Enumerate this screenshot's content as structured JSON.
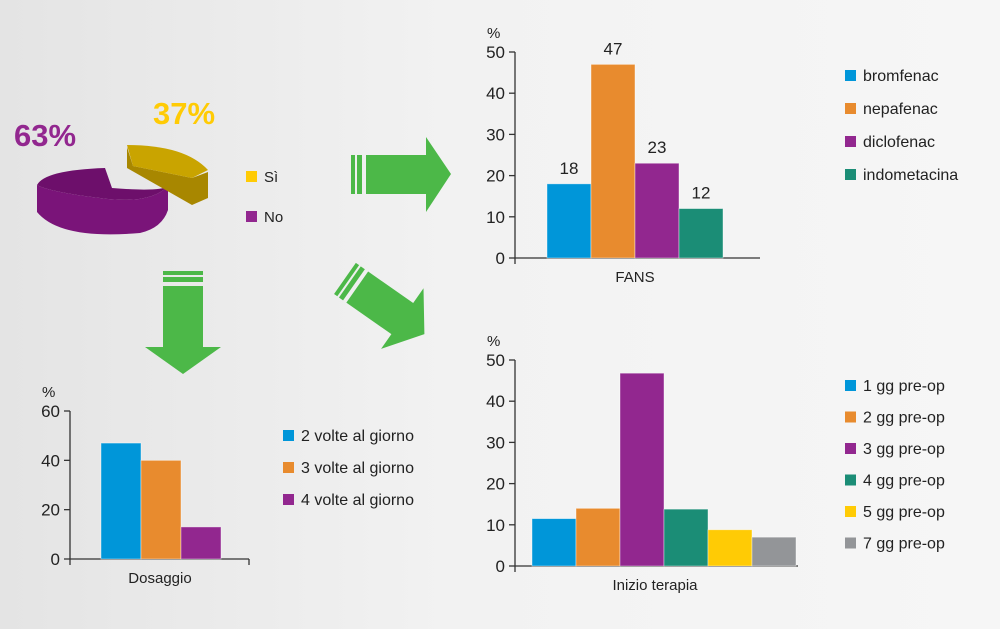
{
  "colors": {
    "blue": "#0096d9",
    "orange": "#e88b2e",
    "purple": "#92278f",
    "teal": "#1b8d76",
    "yellow": "#ffcb05",
    "gray": "#939598",
    "arrow": "#4cb848",
    "pie_yes": "#c9a400",
    "pie_no": "#7a1479"
  },
  "chart_data": [
    {
      "type": "pie",
      "title": "",
      "slices": [
        {
          "label": "Sì",
          "value": 37,
          "display": "37%",
          "color": "#ffcb05"
        },
        {
          "label": "No",
          "value": 63,
          "display": "63%",
          "color": "#92278f"
        }
      ]
    },
    {
      "type": "bar",
      "ylabel": "%",
      "xlabel": "FANS",
      "ylim": [
        0,
        50
      ],
      "yticks": [
        "0",
        "10",
        "20",
        "30",
        "40",
        "50"
      ],
      "series": [
        {
          "name": "bromfenac",
          "value": 18,
          "label": "18",
          "color": "#0096d9"
        },
        {
          "name": "nepafenac",
          "value": 47,
          "label": "47",
          "color": "#e88b2e"
        },
        {
          "name": "diclofenac",
          "value": 23,
          "label": "23",
          "color": "#92278f"
        },
        {
          "name": "indometacina",
          "value": 12,
          "label": "12",
          "color": "#1b8d76"
        }
      ],
      "legend": "right"
    },
    {
      "type": "bar",
      "ylabel": "%",
      "xlabel": "Dosaggio",
      "ylim": [
        0,
        60
      ],
      "yticks": [
        "0",
        "20",
        "40",
        "60"
      ],
      "series": [
        {
          "name": "2 volte al giorno",
          "value": 47,
          "color": "#0096d9"
        },
        {
          "name": "3 volte al giorno",
          "value": 40,
          "color": "#e88b2e"
        },
        {
          "name": "4 volte al giorno",
          "value": 13,
          "color": "#92278f"
        }
      ],
      "legend": "right"
    },
    {
      "type": "bar",
      "ylabel": "%",
      "xlabel": "Inizio terapia",
      "ylim": [
        0,
        50
      ],
      "yticks": [
        "0",
        "10",
        "20",
        "30",
        "40",
        "50"
      ],
      "series": [
        {
          "name": "1 gg pre-op",
          "value": 11.5,
          "color": "#0096d9"
        },
        {
          "name": "2 gg pre-op",
          "value": 14,
          "color": "#e88b2e"
        },
        {
          "name": "3 gg pre-op",
          "value": 46.8,
          "color": "#92278f"
        },
        {
          "name": "4 gg pre-op",
          "value": 13.8,
          "color": "#1b8d76"
        },
        {
          "name": "5 gg pre-op",
          "value": 8.8,
          "color": "#ffcb05"
        },
        {
          "name": "7 gg pre-op",
          "value": 7,
          "color": "#939598"
        }
      ],
      "legend": "right"
    }
  ]
}
